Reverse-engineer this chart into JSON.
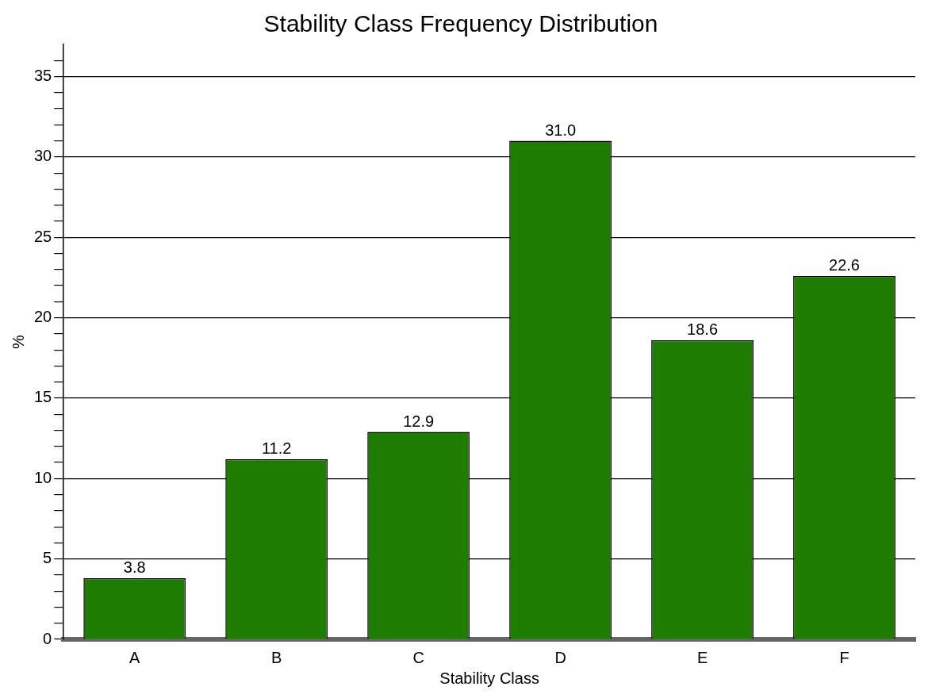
{
  "chart_data": {
    "type": "bar",
    "title": "Stability Class Frequency Distribution",
    "xlabel": "Stability Class",
    "ylabel": "%",
    "categories": [
      "A",
      "B",
      "C",
      "D",
      "E",
      "F"
    ],
    "values": [
      3.8,
      11.2,
      12.9,
      31.0,
      18.6,
      22.6
    ],
    "value_labels": [
      "3.8",
      "11.2",
      "12.9",
      "31.0",
      "18.6",
      "22.6"
    ],
    "color": "#1e7d00",
    "grid": "y",
    "legend": false,
    "ylim": [
      0,
      37
    ],
    "yticks": [
      0,
      {
        "value": 1,
        "label": null
      },
      {
        "value": 2,
        "label": null
      },
      {
        "value": 3,
        "label": null
      },
      {
        "value": 4,
        "label": null
      },
      5,
      {
        "value": 6,
        "label": null
      },
      {
        "value": 7,
        "label": null
      },
      {
        "value": 8,
        "label": null
      },
      {
        "value": 9,
        "label": null
      },
      10,
      {
        "value": 11,
        "label": null
      },
      {
        "value": 12,
        "label": null
      },
      {
        "value": 13,
        "label": null
      },
      {
        "value": 14,
        "label": null
      },
      15,
      {
        "value": 16,
        "label": null
      },
      {
        "value": 17,
        "label": null
      },
      {
        "value": 18,
        "label": null
      },
      {
        "value": 19,
        "label": null
      },
      20,
      {
        "value": 21,
        "label": null
      },
      {
        "value": 22,
        "label": null
      },
      {
        "value": 23,
        "label": null
      },
      {
        "value": 24,
        "label": null
      },
      25,
      {
        "value": 26,
        "label": null
      },
      {
        "value": 27,
        "label": null
      },
      {
        "value": 28,
        "label": null
      },
      {
        "value": 29,
        "label": null
      },
      30,
      {
        "value": 31,
        "label": null
      },
      {
        "value": 32,
        "label": null
      },
      {
        "value": 33,
        "label": null
      },
      {
        "value": 34,
        "label": null
      },
      35,
      {
        "value": 36,
        "label": null
      }
    ]
  }
}
